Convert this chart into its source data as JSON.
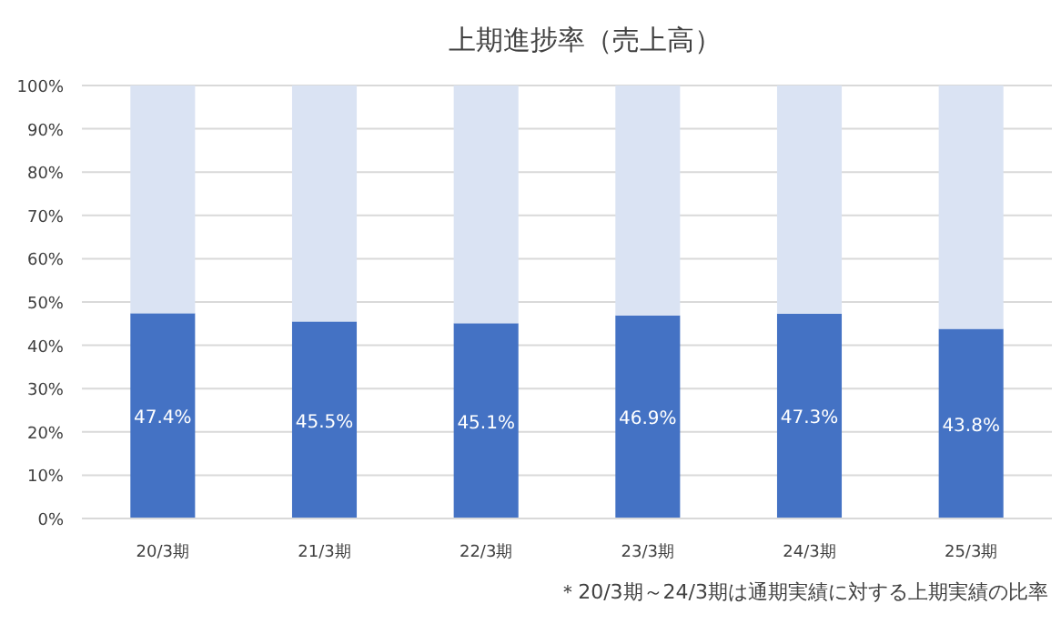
{
  "chart_data": {
    "type": "bar",
    "stacked": true,
    "title": "上期進捗率（売上高）",
    "categories": [
      "20/3期",
      "21/3期",
      "22/3期",
      "23/3期",
      "24/3期",
      "25/3期"
    ],
    "series": [
      {
        "color": "#4472c4",
        "values": [
          47.4,
          45.5,
          45.1,
          46.9,
          47.3,
          43.8
        ],
        "value_labels": [
          "47.4%",
          "45.5%",
          "45.1%",
          "46.9%",
          "47.3%",
          "43.8%"
        ]
      },
      {
        "color": "#dae3f3",
        "values": [
          52.6,
          54.5,
          54.9,
          53.1,
          52.7,
          56.2
        ]
      }
    ],
    "ylim": [
      0,
      100
    ],
    "yticks": [
      {
        "value": 0,
        "label": "0%"
      },
      {
        "value": 10,
        "label": "10%"
      },
      {
        "value": 20,
        "label": "20%"
      },
      {
        "value": 30,
        "label": "30%"
      },
      {
        "value": 40,
        "label": "40%"
      },
      {
        "value": 50,
        "label": "50%"
      },
      {
        "value": 60,
        "label": "60%"
      },
      {
        "value": 70,
        "label": "70%"
      },
      {
        "value": 80,
        "label": "80%"
      },
      {
        "value": 90,
        "label": "90%"
      },
      {
        "value": 100,
        "label": "100%"
      }
    ],
    "grid": "y",
    "annotations": [
      "＊20/3期～24/3期は通期実績に対する上期実績の比率"
    ]
  }
}
